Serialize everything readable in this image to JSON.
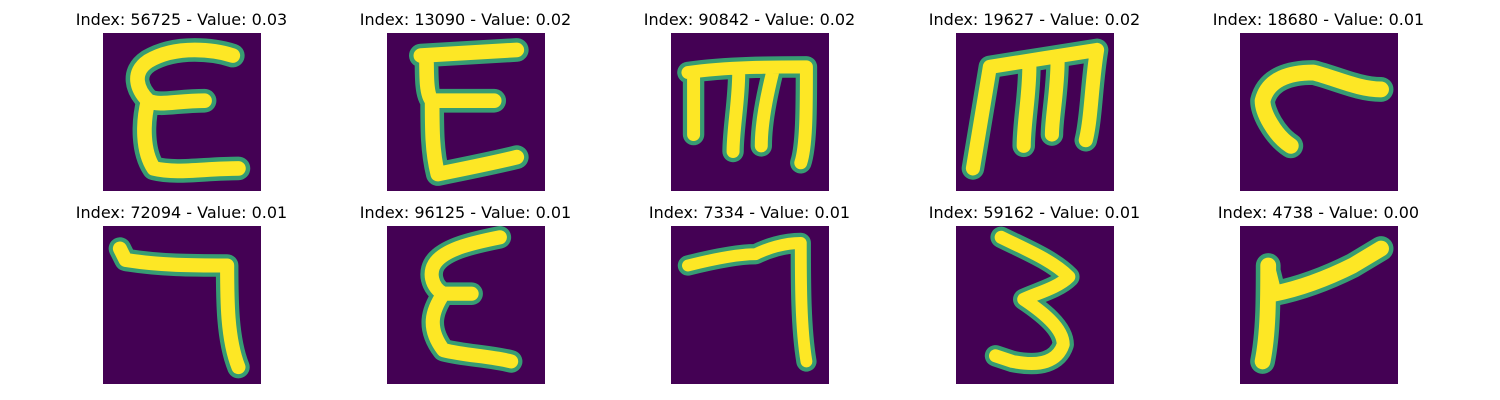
{
  "colors": {
    "background": "#440154",
    "stroke": "#fde725",
    "edge": "#35b779"
  },
  "images": [
    {
      "title": "Index: 56725 - Value: 0.03",
      "index": 56725,
      "value": 0.03,
      "glyph": "ε-like"
    },
    {
      "title": "Index: 13090 - Value: 0.02",
      "index": 13090,
      "value": 0.02,
      "glyph": "ε-like"
    },
    {
      "title": "Index: 90842 - Value: 0.02",
      "index": 90842,
      "value": 0.02,
      "glyph": "m-like"
    },
    {
      "title": "Index: 19627 - Value: 0.02",
      "index": 19627,
      "value": 0.02,
      "glyph": "m-like"
    },
    {
      "title": "Index: 18680 - Value: 0.01",
      "index": 18680,
      "value": 0.01,
      "glyph": "r-like"
    },
    {
      "title": "Index: 72094 - Value: 0.01",
      "index": 72094,
      "value": 0.01,
      "glyph": "7-like"
    },
    {
      "title": "Index: 96125 - Value: 0.01",
      "index": 96125,
      "value": 0.01,
      "glyph": "ε-like"
    },
    {
      "title": "Index: 7334 - Value: 0.01",
      "index": 7334,
      "value": 0.01,
      "glyph": "7-like"
    },
    {
      "title": "Index: 59162 - Value: 0.01",
      "index": 59162,
      "value": 0.01,
      "glyph": "3-like"
    },
    {
      "title": "Index: 4738 - Value: 0.00",
      "index": 4738,
      "value": 0.0,
      "glyph": "r-like"
    }
  ]
}
